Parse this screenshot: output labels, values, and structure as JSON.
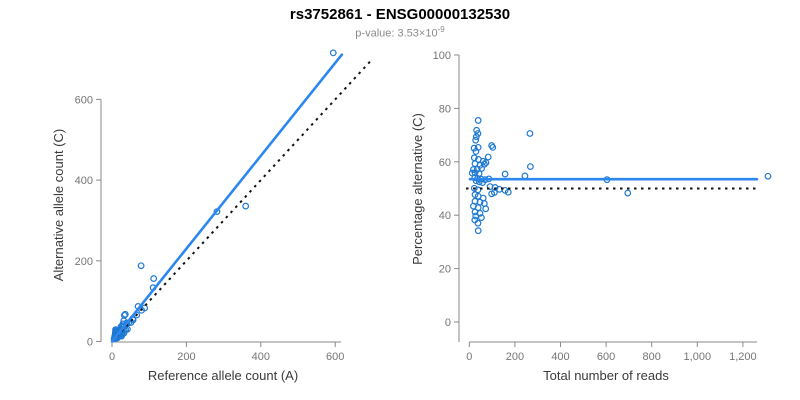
{
  "header": {
    "title": "rs3752861 - ENSG00000132530",
    "subtitle_base": "p-value: 3.53×10",
    "subtitle_exp": "-9"
  },
  "chart_data": {
    "type": "scatter",
    "title": "rs3752861 - ENSG00000132530",
    "subtitle": "p-value: 3.53e-9",
    "colors": {
      "point": "#1e79d2",
      "fit_line": "#2d87f0",
      "identity_line": "#111111",
      "axis": "#8a8a8a",
      "tick_label": "#757575",
      "axis_label": "#3a3a3a"
    },
    "samples_total_pct": [
      [
        39,
        75.5
      ],
      [
        32,
        71.8
      ],
      [
        38,
        70.6
      ],
      [
        31,
        69.4
      ],
      [
        28,
        68.1
      ],
      [
        266,
        70.6
      ],
      [
        98,
        66.1
      ],
      [
        21,
        65.1
      ],
      [
        39,
        65.4
      ],
      [
        103,
        65.4
      ],
      [
        29,
        63.9
      ],
      [
        83,
        61.8
      ],
      [
        22,
        61.5
      ],
      [
        40,
        60.9
      ],
      [
        61,
        60.2
      ],
      [
        73,
        59.7
      ],
      [
        25,
        59.3
      ],
      [
        47,
        58.7
      ],
      [
        66,
        59.1
      ],
      [
        268,
        58.2
      ],
      [
        18,
        57.1
      ],
      [
        35,
        57.2
      ],
      [
        54,
        57.5
      ],
      [
        13,
        55.8
      ],
      [
        25,
        55.9
      ],
      [
        43,
        55.6
      ],
      [
        157,
        55.4
      ],
      [
        244,
        54.7
      ],
      [
        24,
        54.0
      ],
      [
        36,
        53.8
      ],
      [
        52,
        53.5
      ],
      [
        70,
        53.3
      ],
      [
        86,
        53.6
      ],
      [
        30,
        52.9
      ],
      [
        44,
        52.5
      ],
      [
        58,
        52.2
      ],
      [
        91,
        50.7
      ],
      [
        113,
        50.4
      ],
      [
        132,
        49.7
      ],
      [
        157,
        49.3
      ],
      [
        171,
        48.6
      ],
      [
        110,
        48.5
      ],
      [
        98,
        48.0
      ],
      [
        22,
        50.1
      ],
      [
        38,
        49.5
      ],
      [
        25,
        47.7
      ],
      [
        39,
        47.1
      ],
      [
        61,
        46.4
      ],
      [
        25,
        45.2
      ],
      [
        47,
        44.9
      ],
      [
        66,
        44.4
      ],
      [
        18,
        43.4
      ],
      [
        39,
        42.8
      ],
      [
        72,
        42.4
      ],
      [
        25,
        41.2
      ],
      [
        47,
        40.7
      ],
      [
        28,
        39.7
      ],
      [
        53,
        39.1
      ],
      [
        24,
        38.2
      ],
      [
        38,
        37.0
      ],
      [
        39,
        34.2
      ],
      [
        604,
        53.3
      ],
      [
        695,
        48.3
      ],
      [
        1310,
        54.6
      ]
    ],
    "left_plot": {
      "xlabel": "Reference allele count (A)",
      "ylabel": "Alternative allele count (C)",
      "xtick_labels": [
        "0",
        "200",
        "400",
        "600"
      ],
      "xtick_values": [
        0,
        200,
        400,
        600
      ],
      "ytick_labels": [
        "0",
        "200",
        "400",
        "600"
      ],
      "ytick_values": [
        0,
        200,
        400,
        600
      ],
      "xlim": [
        0,
        630
      ],
      "ylim": [
        0,
        730
      ],
      "fit_line_slope": 1.1505,
      "identity_line": "y = x"
    },
    "right_plot": {
      "xlabel": "Total number of reads",
      "ylabel": "Percentage alternative (C)",
      "xtick_labels": [
        "0",
        "200",
        "400",
        "600",
        "800",
        "1,000",
        "1,200"
      ],
      "xtick_values": [
        0,
        200,
        400,
        600,
        800,
        1000,
        1200
      ],
      "ytick_labels": [
        "0",
        "20",
        "40",
        "60",
        "80",
        "100"
      ],
      "ytick_values": [
        0,
        20,
        40,
        60,
        80,
        100
      ],
      "xlim": [
        0,
        1340
      ],
      "ylim": [
        0,
        100
      ],
      "fit_line_y": 53.5,
      "dotted_line_y": 50
    }
  }
}
